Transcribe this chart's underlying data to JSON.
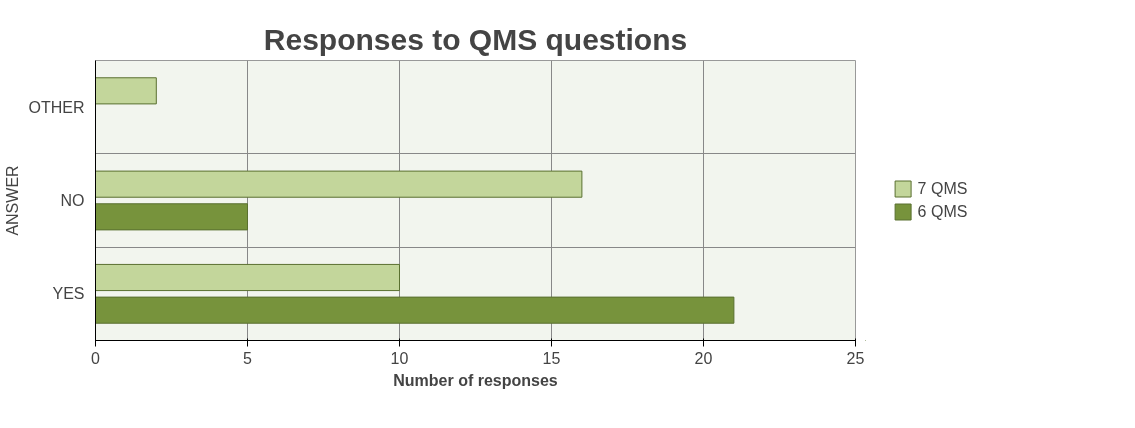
{
  "chart_data": {
    "type": "bar",
    "orientation": "horizontal",
    "title": "Responses to QMS questions",
    "xlabel": "Number of responses",
    "ylabel": "ANSWER",
    "categories": [
      "OTHER",
      "NO",
      "YES"
    ],
    "series": [
      {
        "name": "7 QMS",
        "color": "#c3d69b",
        "values": [
          2,
          16,
          10
        ]
      },
      {
        "name": "6 QMS",
        "color": "#77933c",
        "values": [
          null,
          5,
          21
        ]
      }
    ],
    "xlim": [
      0,
      25
    ],
    "xticks": [
      0,
      5,
      10,
      15,
      20,
      25
    ],
    "grid": true,
    "legend": "right"
  }
}
